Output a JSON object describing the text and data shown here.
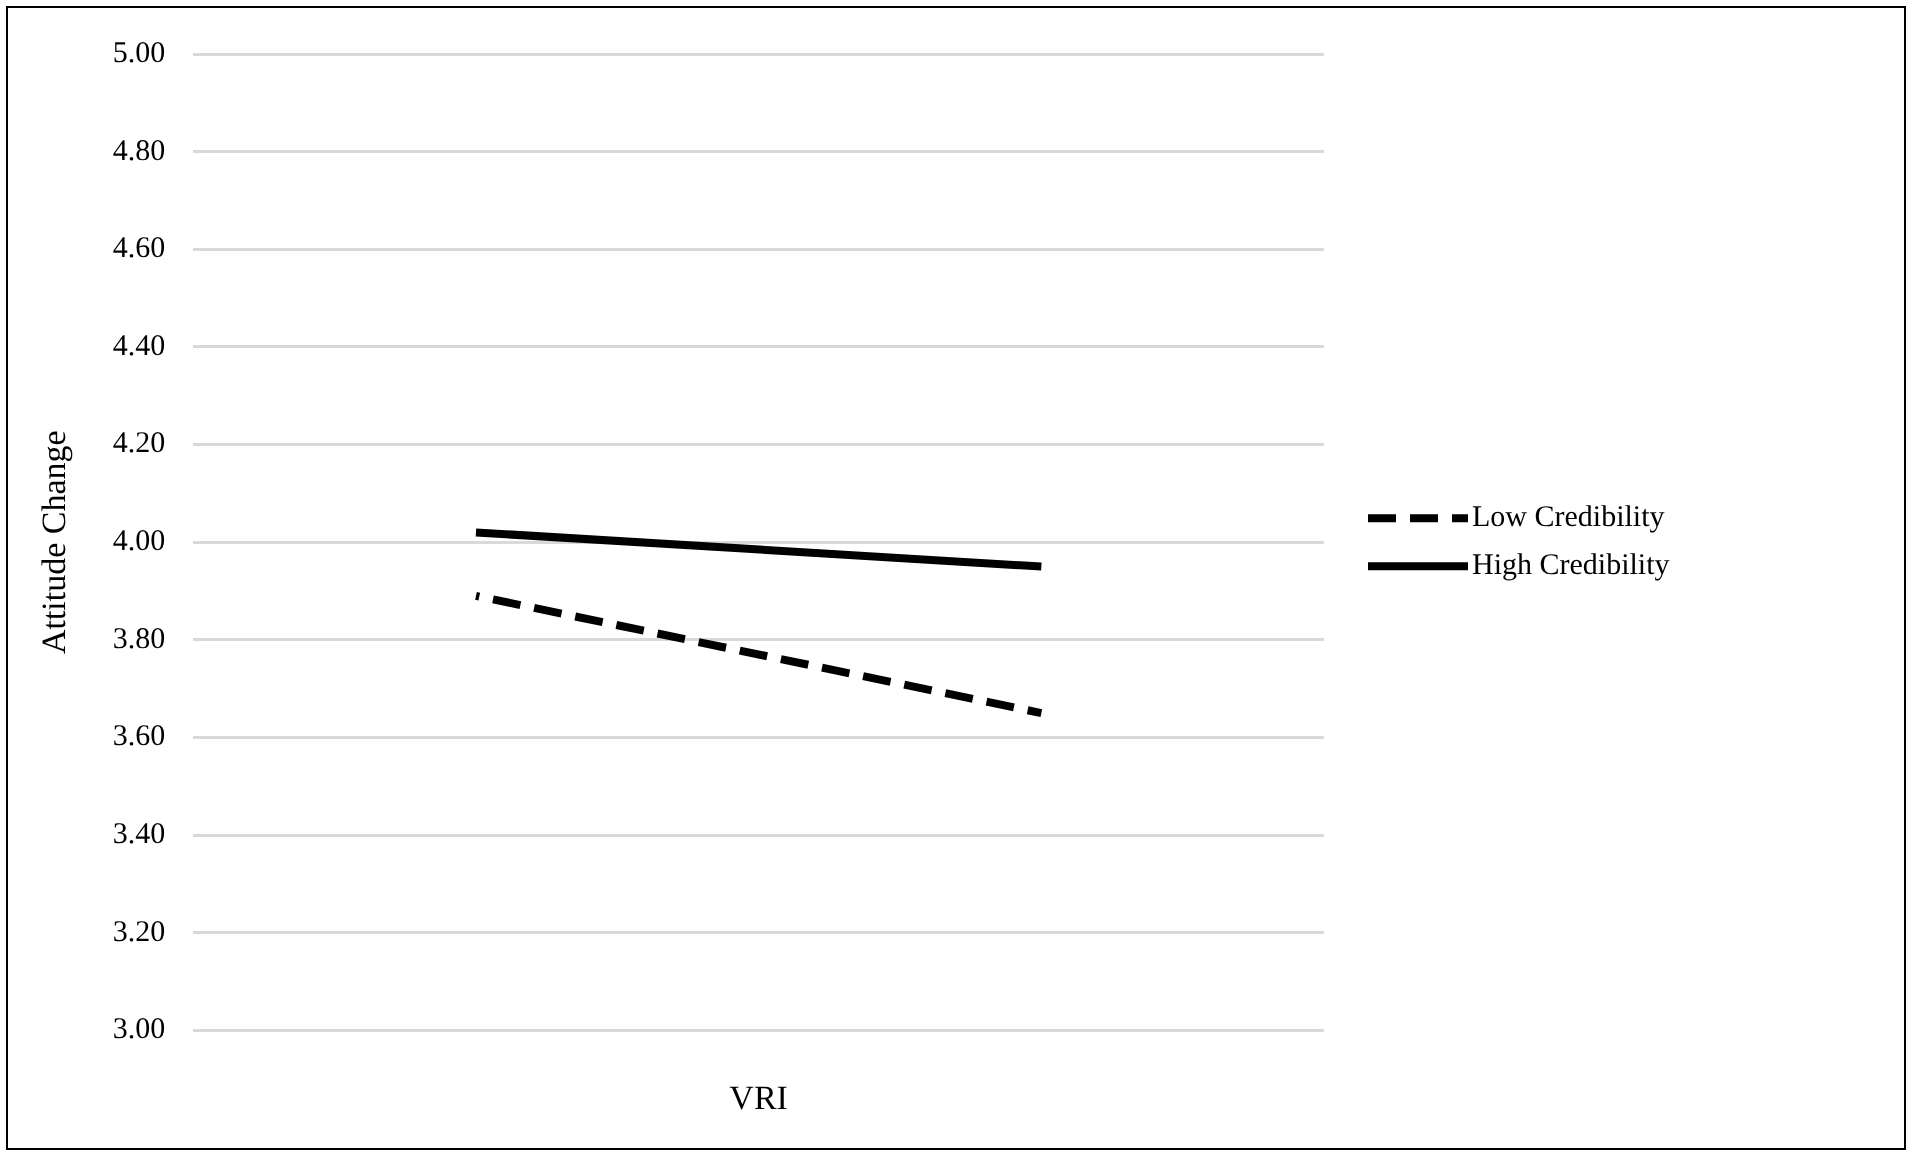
{
  "chart_data": {
    "type": "line",
    "xlabel": "VRI",
    "ylabel": "Attitude Change",
    "categories": [
      null,
      null
    ],
    "series": [
      {
        "name": "Low Credibility",
        "color": "#000000",
        "line_style": "dashed",
        "values": [
          3.89,
          3.65
        ]
      },
      {
        "name": "High Credibility",
        "color": "#000000",
        "line_style": "solid",
        "values": [
          4.02,
          3.95
        ]
      }
    ],
    "ylim": [
      3.0,
      5.0
    ],
    "yticks": [
      {
        "value": 3.0,
        "label": "3.00"
      },
      {
        "value": 3.2,
        "label": "3.20"
      },
      {
        "value": 3.4,
        "label": "3.40"
      },
      {
        "value": 3.6,
        "label": "3.60"
      },
      {
        "value": 3.8,
        "label": "3.80"
      },
      {
        "value": 4.0,
        "label": "4.00"
      },
      {
        "value": 4.2,
        "label": "4.20"
      },
      {
        "value": 4.4,
        "label": "4.40"
      },
      {
        "value": 4.6,
        "label": "4.60"
      },
      {
        "value": 4.8,
        "label": "4.80"
      },
      {
        "value": 5.0,
        "label": "5.00"
      }
    ],
    "grid": "y",
    "legend": "right",
    "marker": "none"
  }
}
